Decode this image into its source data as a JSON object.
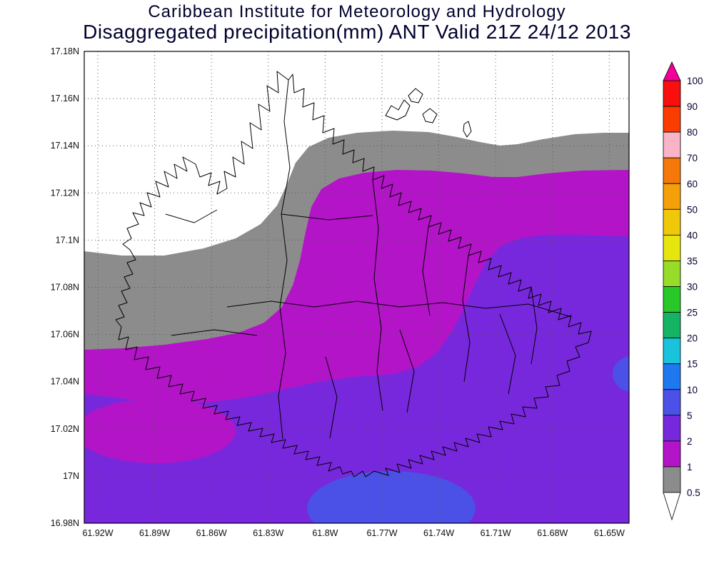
{
  "title": {
    "line1": "Caribbean Institute for Meteorology and Hydrology",
    "line2": "Disaggregated precipitation(mm) ANT Valid 21Z 24/12 2013"
  },
  "map": {
    "y_axis_labels": [
      "17.18N",
      "17.16N",
      "17.14N",
      "17.12N",
      "17.1N",
      "17.08N",
      "17.06N",
      "17.04N",
      "17.02N",
      "17N",
      "16.98N"
    ],
    "x_axis_labels": [
      "61.92W",
      "61.89W",
      "61.86W",
      "61.83W",
      "61.8W",
      "61.77W",
      "61.74W",
      "61.71W",
      "61.68W",
      "61.65W"
    ]
  },
  "palette": {
    "white_lt_0_5": "#FFFFFF",
    "gray_0_5_1": "#8C8C8C",
    "magenta_1_2": "#B414C8",
    "purple_2_5": "#7828DC",
    "blue_5_10": "#4B50E6"
  },
  "legend": {
    "labels": [
      "100",
      "90",
      "80",
      "70",
      "60",
      "50",
      "40",
      "35",
      "30",
      "25",
      "20",
      "15",
      "10",
      "5",
      "2",
      "1",
      "0.5"
    ],
    "segment_colors": [
      "#FA0F0F",
      "#FA3C00",
      "#FAB4C8",
      "#F5780A",
      "#F5A00A",
      "#F0C80A",
      "#E6E60F",
      "#96DC28",
      "#28C828",
      "#14B464",
      "#19C3DC",
      "#1E78F0",
      "#4B50E6",
      "#7828DC",
      "#B414C8",
      "#8C8C8C"
    ],
    "arrow_top_color": "#F00096",
    "arrow_bottom_color": "#FFFFFF"
  },
  "chart_data": {
    "type": "filled_contour_map",
    "title": "Caribbean Institute for Meteorology and Hydrology",
    "subtitle": "Disaggregated precipitation(mm) ANT Valid 21Z 24/12 2013",
    "variable": "precipitation",
    "units": "mm",
    "region_code": "ANT",
    "valid_time": "21Z 24/12 2013",
    "lat_ticks": [
      "16.98N",
      "17N",
      "17.02N",
      "17.04N",
      "17.06N",
      "17.08N",
      "17.1N",
      "17.12N",
      "17.14N",
      "17.16N",
      "17.18N"
    ],
    "lon_ticks": [
      "61.92W",
      "61.89W",
      "61.86W",
      "61.83W",
      "61.8W",
      "61.77W",
      "61.74W",
      "61.71W",
      "61.68W",
      "61.65W"
    ],
    "contour_levels_mm": [
      0.5,
      1,
      2,
      5,
      10,
      15,
      20,
      25,
      30,
      35,
      40,
      50,
      60,
      70,
      80,
      90,
      100
    ],
    "legend_position": "right",
    "grid": "dotted",
    "shaded_bands_visible": [
      {
        "range_mm": "< 0.5",
        "color": "white",
        "where": "northwest and north of domain"
      },
      {
        "range_mm": "0.5-1",
        "color": "gray",
        "where": "band sweeping from west-center up to the northeast edge"
      },
      {
        "range_mm": "1-2",
        "color": "magenta",
        "where": "band under the gray band, a wide tongue through the center, and a pocket in the southwest"
      },
      {
        "range_mm": "2-5",
        "color": "purple",
        "where": "most of the southern and eastern domain"
      },
      {
        "range_mm": "5-10",
        "color": "blue",
        "where": "blob at bottom-center near 17N and a small patch on the east edge near 17.04N"
      }
    ],
    "max_shaded_value_mm": 10
  }
}
